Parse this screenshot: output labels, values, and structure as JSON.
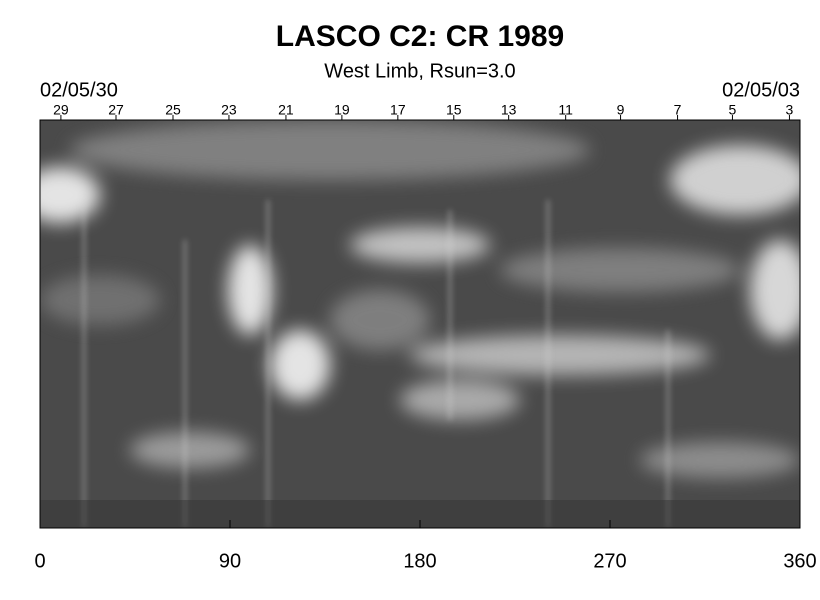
{
  "chart_data": {
    "type": "image",
    "title": "LASCO C2: CR 1989",
    "subtitle": "West Limb, Rsun=3.0",
    "start_date": "02/05/30",
    "end_date": "02/05/03",
    "xlim": [
      0,
      360
    ],
    "xticks": [
      0,
      90,
      180,
      270,
      360
    ],
    "top_ticks": [
      {
        "value": 9.9,
        "label": "29"
      },
      {
        "value": 36.0,
        "label": "27"
      },
      {
        "value": 63.0,
        "label": "25"
      },
      {
        "value": 89.5,
        "label": "23"
      },
      {
        "value": 116.5,
        "label": "21"
      },
      {
        "value": 143.0,
        "label": "19"
      },
      {
        "value": 169.5,
        "label": "17"
      },
      {
        "value": 196.0,
        "label": "15"
      },
      {
        "value": 222.0,
        "label": "13"
      },
      {
        "value": 249.0,
        "label": "11"
      },
      {
        "value": 275.0,
        "label": "9"
      },
      {
        "value": 302.0,
        "label": "7"
      },
      {
        "value": 328.0,
        "label": "5"
      },
      {
        "value": 355.0,
        "label": "3"
      }
    ]
  }
}
